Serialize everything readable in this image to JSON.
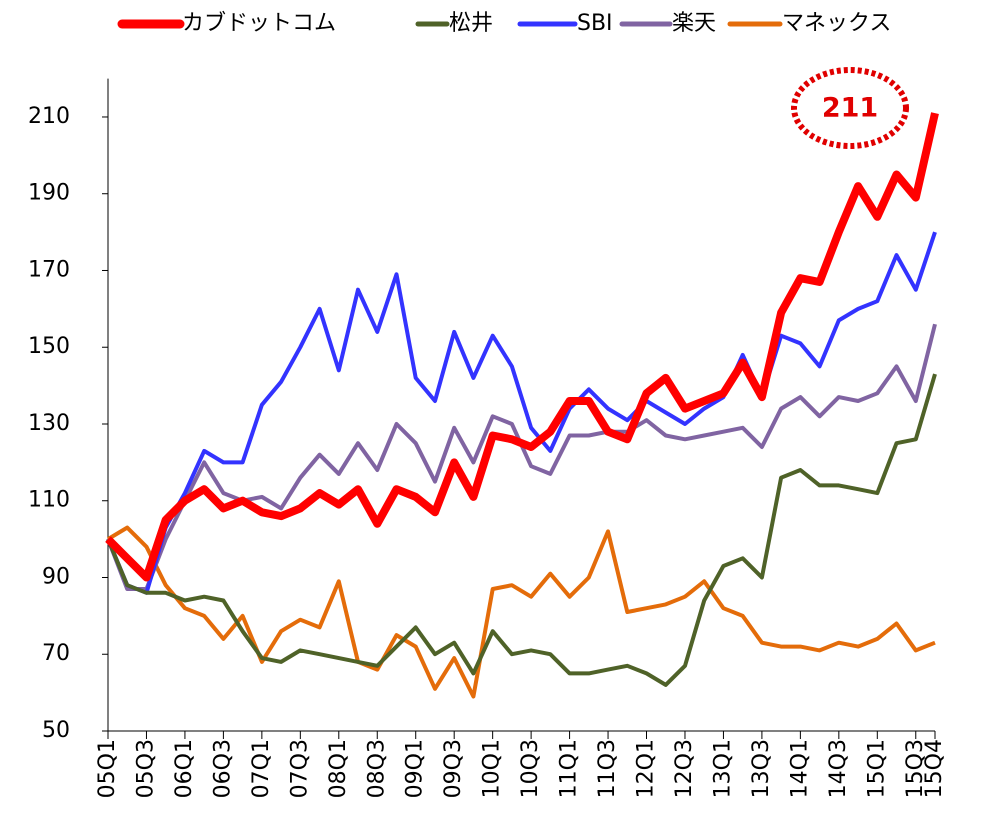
{
  "chart_data": {
    "type": "line",
    "categories": [
      "05Q1",
      null,
      "05Q3",
      null,
      "06Q1",
      null,
      "06Q3",
      null,
      "07Q1",
      null,
      "07Q3",
      null,
      "08Q1",
      null,
      "08Q3",
      null,
      "09Q1",
      null,
      "09Q3",
      null,
      "10Q1",
      null,
      "10Q3",
      null,
      "11Q1",
      null,
      "11Q3",
      null,
      "12Q1",
      null,
      "12Q3",
      null,
      "13Q1",
      null,
      "13Q3",
      null,
      "14Q1",
      null,
      "14Q3",
      null,
      "15Q1",
      null,
      "15Q3",
      "15Q4"
    ],
    "series": [
      {
        "name": "カブドットコム",
        "color": "#ff0000",
        "values": [
          100,
          95,
          90,
          105,
          110,
          113,
          108,
          110,
          107,
          106,
          108,
          112,
          109,
          113,
          104,
          113,
          111,
          107,
          120,
          111,
          127,
          126,
          124,
          128,
          136,
          136,
          128,
          126,
          138,
          142,
          134,
          136,
          138,
          146,
          137,
          159,
          168,
          167,
          180,
          192,
          184,
          195,
          189,
          211
        ]
      },
      {
        "name": "松井",
        "color": "#4f6228",
        "values": [
          100,
          88,
          86,
          86,
          84,
          85,
          84,
          76,
          69,
          68,
          71,
          70,
          69,
          68,
          67,
          72,
          77,
          70,
          73,
          65,
          76,
          70,
          71,
          70,
          65,
          65,
          66,
          67,
          65,
          62,
          67,
          84,
          93,
          95,
          90,
          116,
          118,
          114,
          114,
          113,
          112,
          125,
          126,
          143
        ]
      },
      {
        "name": "SBI",
        "color": "#3333ff",
        "values": [
          100,
          88,
          86,
          103,
          112,
          123,
          120,
          120,
          135,
          141,
          150,
          160,
          144,
          165,
          154,
          169,
          142,
          136,
          154,
          142,
          153,
          145,
          129,
          123,
          134,
          139,
          134,
          131,
          136,
          133,
          130,
          134,
          137,
          148,
          137,
          153,
          151,
          145,
          157,
          160,
          162,
          174,
          165,
          180
        ]
      },
      {
        "name": "楽天",
        "color": "#8064a2",
        "values": [
          100,
          87,
          87,
          100,
          110,
          120,
          112,
          110,
          111,
          108,
          116,
          122,
          117,
          125,
          118,
          130,
          125,
          115,
          129,
          120,
          132,
          130,
          119,
          117,
          127,
          127,
          128,
          128,
          131,
          127,
          126,
          127,
          128,
          129,
          124,
          134,
          137,
          132,
          137,
          136,
          138,
          145,
          136,
          156
        ]
      },
      {
        "name": "マネックス",
        "color": "#e46c0a",
        "values": [
          100,
          103,
          98,
          88,
          82,
          80,
          74,
          80,
          68,
          76,
          79,
          77,
          89,
          68,
          66,
          75,
          72,
          61,
          69,
          59,
          87,
          88,
          85,
          91,
          85,
          90,
          102,
          81,
          82,
          83,
          85,
          89,
          82,
          80,
          73,
          72,
          72,
          71,
          73,
          72,
          74,
          78,
          71,
          73
        ]
      }
    ],
    "ylim": [
      50,
      220
    ],
    "yticks": [
      50,
      70,
      90,
      110,
      130,
      150,
      170,
      190,
      210
    ],
    "legend": "top",
    "annotation": "211"
  }
}
